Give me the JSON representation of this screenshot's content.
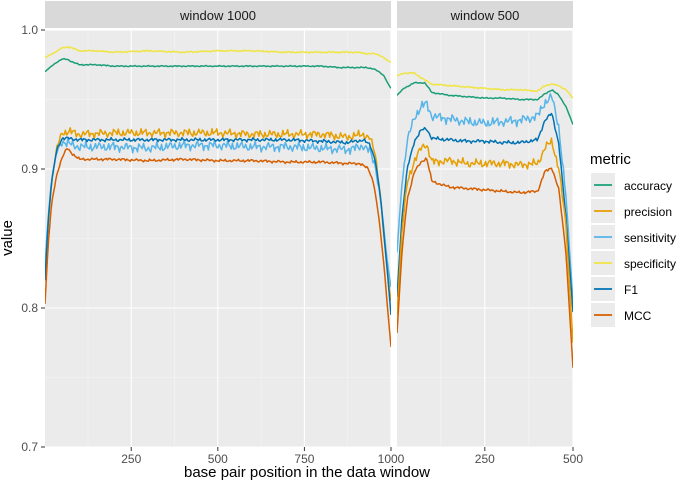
{
  "chart_data": {
    "type": "line",
    "title": "",
    "xlabel": "base pair position in the data window",
    "ylabel": "value",
    "ylim": [
      0.7,
      1.0
    ],
    "yticks": [
      0.7,
      0.8,
      0.9,
      1.0
    ],
    "ytick_labels": [
      "0.7",
      "0.8",
      "0.9",
      "1.0"
    ],
    "legend": {
      "title": "metric",
      "placement": "right",
      "entries": [
        "accuracy",
        "precision",
        "sensitivity",
        "specificity",
        "F1",
        "MCC"
      ]
    },
    "colors": {
      "accuracy": "#1b9e77",
      "precision": "#e69f00",
      "sensitivity": "#56b4e9",
      "specificity": "#f0e442",
      "F1": "#0072b2",
      "MCC": "#d55e00"
    },
    "panels": [
      {
        "label": "window 1000",
        "xlim": [
          1,
          1000
        ],
        "xticks": [
          250,
          500,
          750,
          1000
        ],
        "xtick_labels": [
          "250",
          "500",
          "750",
          "1000"
        ],
        "series": [
          {
            "name": "accuracy",
            "x": [
              1,
              15,
              30,
              50,
              65,
              80,
              100,
              150,
              200,
              300,
              400,
              500,
              600,
              700,
              800,
              850,
              900,
              930,
              950,
              965,
              980,
              990,
              1000
            ],
            "values": [
              0.97,
              0.973,
              0.976,
              0.979,
              0.979,
              0.977,
              0.975,
              0.975,
              0.974,
              0.974,
              0.974,
              0.974,
              0.974,
              0.974,
              0.974,
              0.973,
              0.973,
              0.973,
              0.972,
              0.97,
              0.967,
              0.962,
              0.958
            ]
          },
          {
            "name": "specificity",
            "x": [
              1,
              15,
              30,
              50,
              65,
              80,
              100,
              150,
              200,
              300,
              400,
              500,
              600,
              700,
              800,
              850,
              900,
              930,
              950,
              965,
              980,
              990,
              1000
            ],
            "values": [
              0.98,
              0.982,
              0.984,
              0.987,
              0.988,
              0.987,
              0.985,
              0.985,
              0.984,
              0.985,
              0.984,
              0.985,
              0.985,
              0.984,
              0.984,
              0.984,
              0.984,
              0.983,
              0.983,
              0.982,
              0.98,
              0.978,
              0.977
            ]
          },
          {
            "name": "precision",
            "x": [
              1,
              10,
              20,
              35,
              50,
              70,
              100,
              200,
              300,
              400,
              500,
              600,
              700,
              800,
              870,
              900,
              920,
              940,
              955,
              970,
              980,
              990,
              1000
            ],
            "values": [
              0.82,
              0.86,
              0.89,
              0.915,
              0.926,
              0.927,
              0.925,
              0.926,
              0.926,
              0.926,
              0.926,
              0.925,
              0.925,
              0.925,
              0.923,
              0.924,
              0.925,
              0.922,
              0.91,
              0.88,
              0.85,
              0.825,
              0.805
            ]
          },
          {
            "name": "sensitivity",
            "x": [
              1,
              10,
              20,
              35,
              50,
              70,
              100,
              200,
              300,
              400,
              500,
              600,
              700,
              800,
              870,
              900,
              920,
              940,
              955,
              970,
              980,
              990,
              1000
            ],
            "values": [
              0.83,
              0.865,
              0.892,
              0.912,
              0.92,
              0.918,
              0.916,
              0.916,
              0.915,
              0.917,
              0.917,
              0.916,
              0.916,
              0.915,
              0.914,
              0.915,
              0.917,
              0.912,
              0.902,
              0.878,
              0.855,
              0.832,
              0.815
            ]
          },
          {
            "name": "F1",
            "x": [
              1,
              10,
              20,
              35,
              50,
              70,
              100,
              200,
              300,
              400,
              500,
              600,
              700,
              800,
              870,
              900,
              920,
              940,
              955,
              970,
              980,
              990,
              1000
            ],
            "values": [
              0.82,
              0.862,
              0.891,
              0.914,
              0.922,
              0.922,
              0.921,
              0.921,
              0.921,
              0.921,
              0.921,
              0.921,
              0.921,
              0.92,
              0.919,
              0.92,
              0.921,
              0.917,
              0.906,
              0.879,
              0.852,
              0.825,
              0.795
            ]
          },
          {
            "name": "MCC",
            "x": [
              1,
              10,
              20,
              35,
              50,
              65,
              80,
              100,
              200,
              300,
              400,
              500,
              600,
              700,
              800,
              870,
              910,
              935,
              950,
              965,
              980,
              990,
              1000
            ],
            "values": [
              0.803,
              0.845,
              0.875,
              0.896,
              0.908,
              0.915,
              0.911,
              0.907,
              0.907,
              0.906,
              0.907,
              0.906,
              0.906,
              0.905,
              0.905,
              0.904,
              0.904,
              0.9,
              0.89,
              0.865,
              0.83,
              0.8,
              0.772
            ]
          }
        ]
      },
      {
        "label": "window 500",
        "xlim": [
          1,
          500
        ],
        "xticks": [
          250,
          500
        ],
        "xtick_labels": [
          "250",
          "500"
        ],
        "series": [
          {
            "name": "accuracy",
            "x": [
              1,
              20,
              50,
              80,
              100,
              150,
              200,
              250,
              300,
              350,
              400,
              420,
              440,
              460,
              480,
              500
            ],
            "values": [
              0.953,
              0.958,
              0.962,
              0.962,
              0.955,
              0.953,
              0.952,
              0.951,
              0.951,
              0.95,
              0.95,
              0.954,
              0.957,
              0.953,
              0.945,
              0.932
            ]
          },
          {
            "name": "specificity",
            "x": [
              1,
              20,
              50,
              80,
              100,
              150,
              200,
              250,
              300,
              350,
              400,
              420,
              440,
              460,
              480,
              500
            ],
            "values": [
              0.967,
              0.969,
              0.969,
              0.964,
              0.961,
              0.96,
              0.959,
              0.958,
              0.957,
              0.957,
              0.956,
              0.96,
              0.961,
              0.96,
              0.957,
              0.951
            ]
          },
          {
            "name": "sensitivity",
            "x": [
              1,
              15,
              30,
              50,
              70,
              85,
              100,
              150,
              200,
              250,
              300,
              350,
              400,
              420,
              440,
              460,
              480,
              500
            ],
            "values": [
              0.84,
              0.89,
              0.92,
              0.937,
              0.945,
              0.947,
              0.938,
              0.936,
              0.934,
              0.933,
              0.934,
              0.935,
              0.938,
              0.948,
              0.952,
              0.93,
              0.88,
              0.805
            ]
          },
          {
            "name": "F1",
            "x": [
              1,
              15,
              30,
              50,
              70,
              85,
              100,
              150,
              200,
              250,
              300,
              350,
              400,
              420,
              440,
              460,
              480,
              500
            ],
            "values": [
              0.808,
              0.865,
              0.9,
              0.92,
              0.928,
              0.929,
              0.922,
              0.921,
              0.92,
              0.92,
              0.919,
              0.919,
              0.921,
              0.935,
              0.94,
              0.918,
              0.865,
              0.797
            ]
          },
          {
            "name": "precision",
            "x": [
              1,
              15,
              30,
              50,
              70,
              85,
              100,
              150,
              200,
              250,
              300,
              350,
              400,
              420,
              440,
              460,
              480,
              500
            ],
            "values": [
              0.795,
              0.855,
              0.89,
              0.906,
              0.915,
              0.918,
              0.905,
              0.906,
              0.904,
              0.904,
              0.904,
              0.903,
              0.904,
              0.915,
              0.92,
              0.9,
              0.86,
              0.775
            ]
          },
          {
            "name": "MCC",
            "x": [
              1,
              15,
              30,
              50,
              70,
              85,
              100,
              150,
              200,
              250,
              300,
              350,
              400,
              420,
              440,
              460,
              480,
              500
            ],
            "values": [
              0.782,
              0.84,
              0.878,
              0.898,
              0.905,
              0.908,
              0.891,
              0.887,
              0.886,
              0.885,
              0.884,
              0.883,
              0.884,
              0.898,
              0.901,
              0.885,
              0.84,
              0.757
            ]
          }
        ]
      }
    ]
  }
}
